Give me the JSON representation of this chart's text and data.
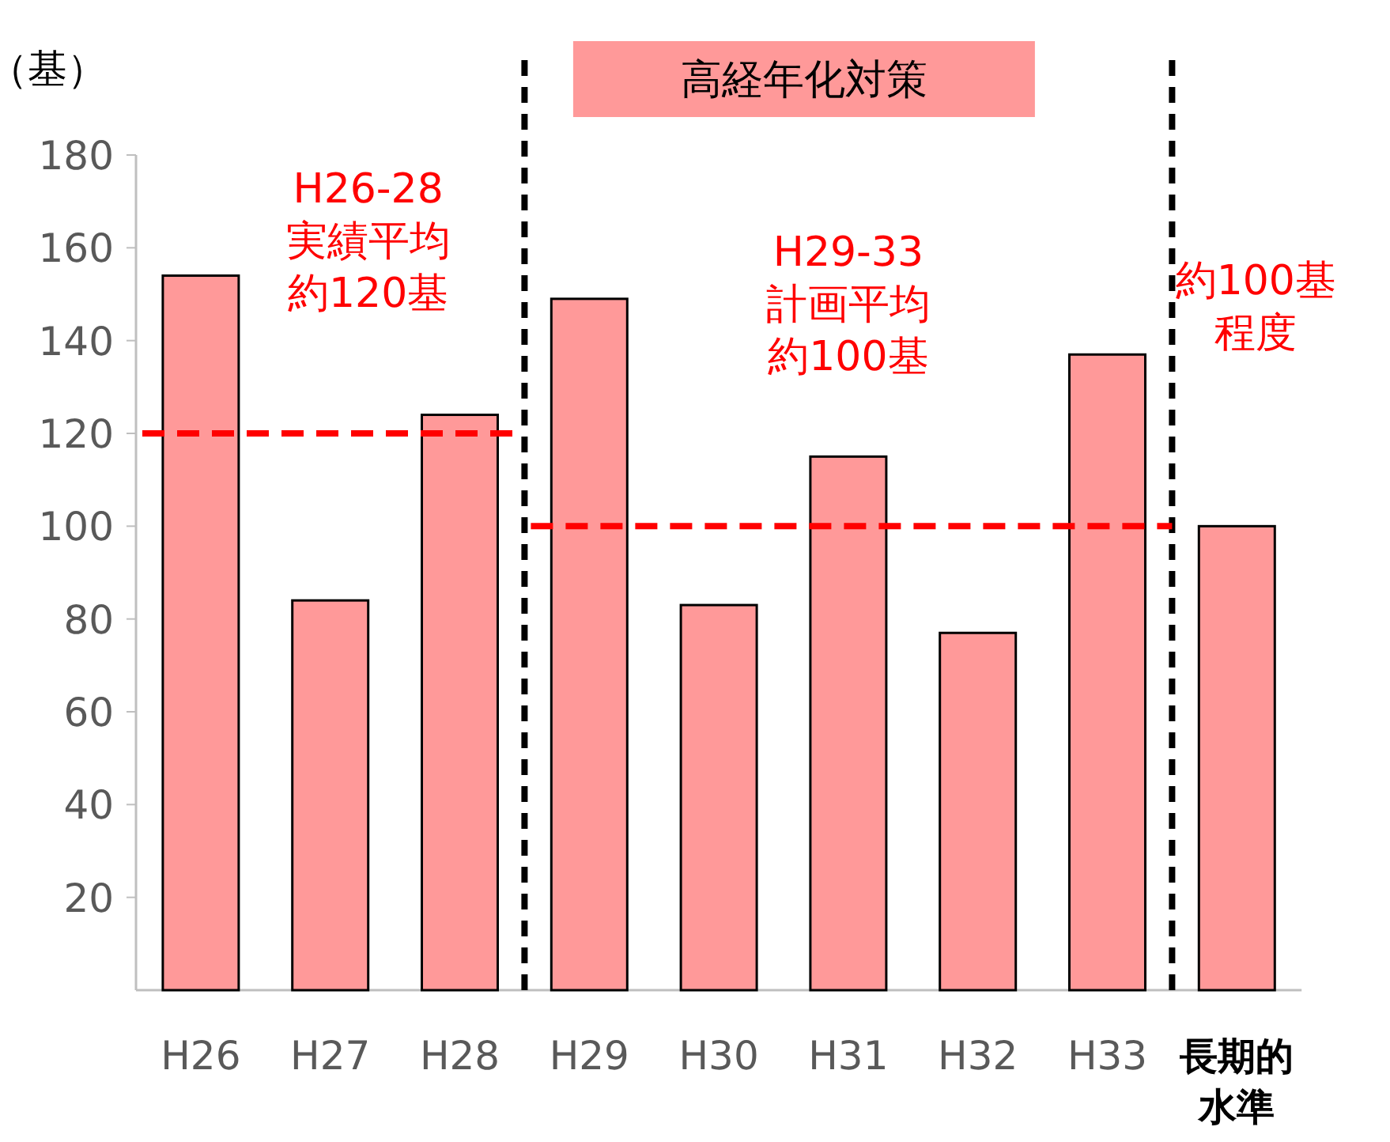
{
  "chart_data": {
    "type": "bar",
    "title": "高経年化対策",
    "ylabel": "（基）",
    "categories": [
      "H26",
      "H27",
      "H28",
      "H29",
      "H30",
      "H31",
      "H32",
      "H33",
      "長期的水準"
    ],
    "values": [
      154,
      84,
      124,
      149,
      83,
      115,
      77,
      137,
      100
    ],
    "color": "#ff9999",
    "ylim": [
      0,
      180
    ],
    "yticks": [
      20,
      40,
      60,
      80,
      100,
      120,
      140,
      160,
      180
    ],
    "grid": false,
    "legend": false,
    "ref_lines": [
      {
        "axis": "y",
        "value": 120,
        "label": "H26-28\n実績平均約120基",
        "color": "#ff0000",
        "line_style": "dashed"
      },
      {
        "axis": "y",
        "value": 100,
        "label": "H29-33\n計画平均約100基",
        "color": "#ff0000",
        "line_style": "dashed"
      }
    ],
    "annotations": [
      "約100基程度"
    ]
  }
}
